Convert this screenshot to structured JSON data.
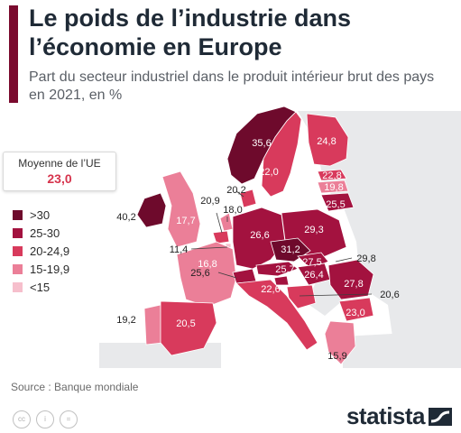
{
  "header": {
    "title": "Le poids de l’industrie dans l’économie en Europe",
    "subtitle": "Part du secteur industriel dans le produit intérieur brut des pays en 2021, en %"
  },
  "average_box": {
    "label": "Moyenne de l’UE",
    "value": "23,0"
  },
  "legend": {
    "items": [
      {
        "label": ">30",
        "color": "#6e0a2c"
      },
      {
        "label": "25-30",
        "color": "#a3123f"
      },
      {
        "label": "20-24,9",
        "color": "#d83a5c"
      },
      {
        "label": "15-19,9",
        "color": "#eb7f98"
      },
      {
        "label": "<15",
        "color": "#f6bfcc"
      }
    ]
  },
  "map": {
    "countries": [
      {
        "name": "Norway",
        "value": "35,6",
        "color": "#6e0a2c"
      },
      {
        "name": "Sweden",
        "value": "22,0",
        "color": "#d83a5c"
      },
      {
        "name": "Finland",
        "value": "24,8",
        "color": "#d83a5c"
      },
      {
        "name": "Estonia",
        "value": "22,8",
        "color": "#d83a5c"
      },
      {
        "name": "Latvia",
        "value": "19,8",
        "color": "#eb7f98"
      },
      {
        "name": "Lithuania",
        "value": "25,5",
        "color": "#a3123f"
      },
      {
        "name": "Ireland",
        "value": "40,2",
        "color": "#6e0a2c"
      },
      {
        "name": "United Kingdom",
        "value": "17,7",
        "color": "#eb7f98"
      },
      {
        "name": "Netherlands",
        "value": "18,0",
        "color": "#eb7f98"
      },
      {
        "name": "Belgium",
        "value": "20,9",
        "color": "#d83a5c"
      },
      {
        "name": "Denmark",
        "value": "20,2",
        "color": "#d83a5c"
      },
      {
        "name": "Luxembourg",
        "value": "11,4",
        "color": "#f6bfcc"
      },
      {
        "name": "France",
        "value": "16,8",
        "color": "#eb7f98"
      },
      {
        "name": "Germany",
        "value": "26,6",
        "color": "#a3123f"
      },
      {
        "name": "Poland",
        "value": "29,3",
        "color": "#a3123f"
      },
      {
        "name": "Czechia",
        "value": "31,2",
        "color": "#6e0a2c"
      },
      {
        "name": "Slovakia",
        "value": "27,5",
        "color": "#a3123f"
      },
      {
        "name": "Austria",
        "value": "25,7",
        "color": "#a3123f"
      },
      {
        "name": "Hungary",
        "value": "26,4",
        "color": "#a3123f"
      },
      {
        "name": "Switzerland",
        "value": "25,6",
        "color": "#a3123f"
      },
      {
        "name": "Slovenia",
        "value": "29,8",
        "color": "#a3123f"
      },
      {
        "name": "Romania",
        "value": "27,8",
        "color": "#a3123f"
      },
      {
        "name": "Croatia",
        "value": "20,6",
        "color": "#d83a5c"
      },
      {
        "name": "Italy",
        "value": "22,6",
        "color": "#d83a5c"
      },
      {
        "name": "Bulgaria",
        "value": "23,0",
        "color": "#d83a5c"
      },
      {
        "name": "Portugal",
        "value": "19,2",
        "color": "#eb7f98"
      },
      {
        "name": "Spain",
        "value": "20,5",
        "color": "#d83a5c"
      },
      {
        "name": "Greece",
        "value": "15,9",
        "color": "#eb7f98"
      }
    ]
  },
  "footer": {
    "source": "Source : Banque mondiale",
    "license_icons": [
      "cc-icon",
      "by-icon",
      "nd-icon"
    ],
    "license_glyphs": [
      "cc",
      "i",
      "="
    ],
    "brand": "statista"
  }
}
